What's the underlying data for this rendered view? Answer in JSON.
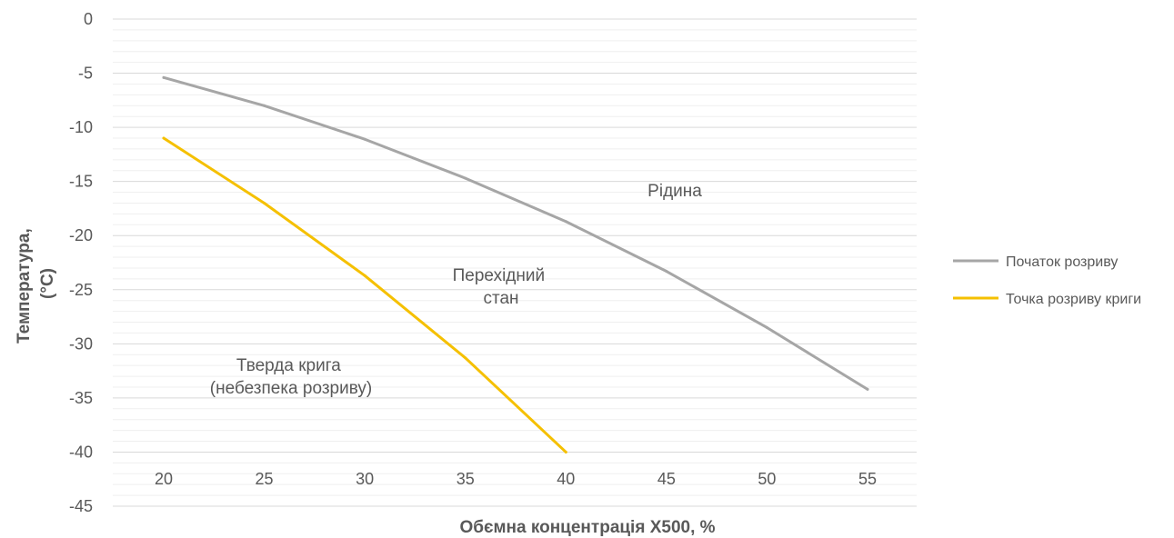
{
  "chart_data": {
    "type": "line",
    "title": "",
    "xlabel": "Обємна концентрація X500, %",
    "ylabel_lines": [
      "Температура,",
      "(°C)"
    ],
    "x_ticks": [
      "20",
      "25",
      "30",
      "35",
      "40",
      "45",
      "50",
      "55"
    ],
    "y_ticks": [
      "0",
      "-5",
      "-10",
      "-15",
      "-20",
      "-25",
      "-30",
      "-35",
      "-40",
      "-45"
    ],
    "ylim": [
      -45,
      0
    ],
    "xlim": [
      20,
      55
    ],
    "grid": "horizontal",
    "legend_position": "right",
    "series": [
      {
        "name": "Початок розриву",
        "color": "#a6a6a6",
        "x": [
          20,
          25,
          30,
          35,
          40,
          45,
          50,
          55
        ],
        "values": [
          -5.4,
          -8.0,
          -11.1,
          -14.7,
          -18.7,
          -23.3,
          -28.5,
          -34.2
        ]
      },
      {
        "name": "Точка розриву криги",
        "color": "#f5c000",
        "x": [
          20,
          25,
          30,
          35,
          40
        ],
        "values": [
          -11.0,
          -17.0,
          -23.7,
          -31.3,
          -40.0
        ]
      }
    ],
    "annotations": [
      {
        "id": "liquid",
        "lines": [
          "Рідина"
        ]
      },
      {
        "id": "transition",
        "lines": [
          "Перехідний",
          "стан"
        ]
      },
      {
        "id": "solid",
        "lines": [
          "Тверда крига",
          "(небезпека розриву)"
        ]
      }
    ]
  }
}
